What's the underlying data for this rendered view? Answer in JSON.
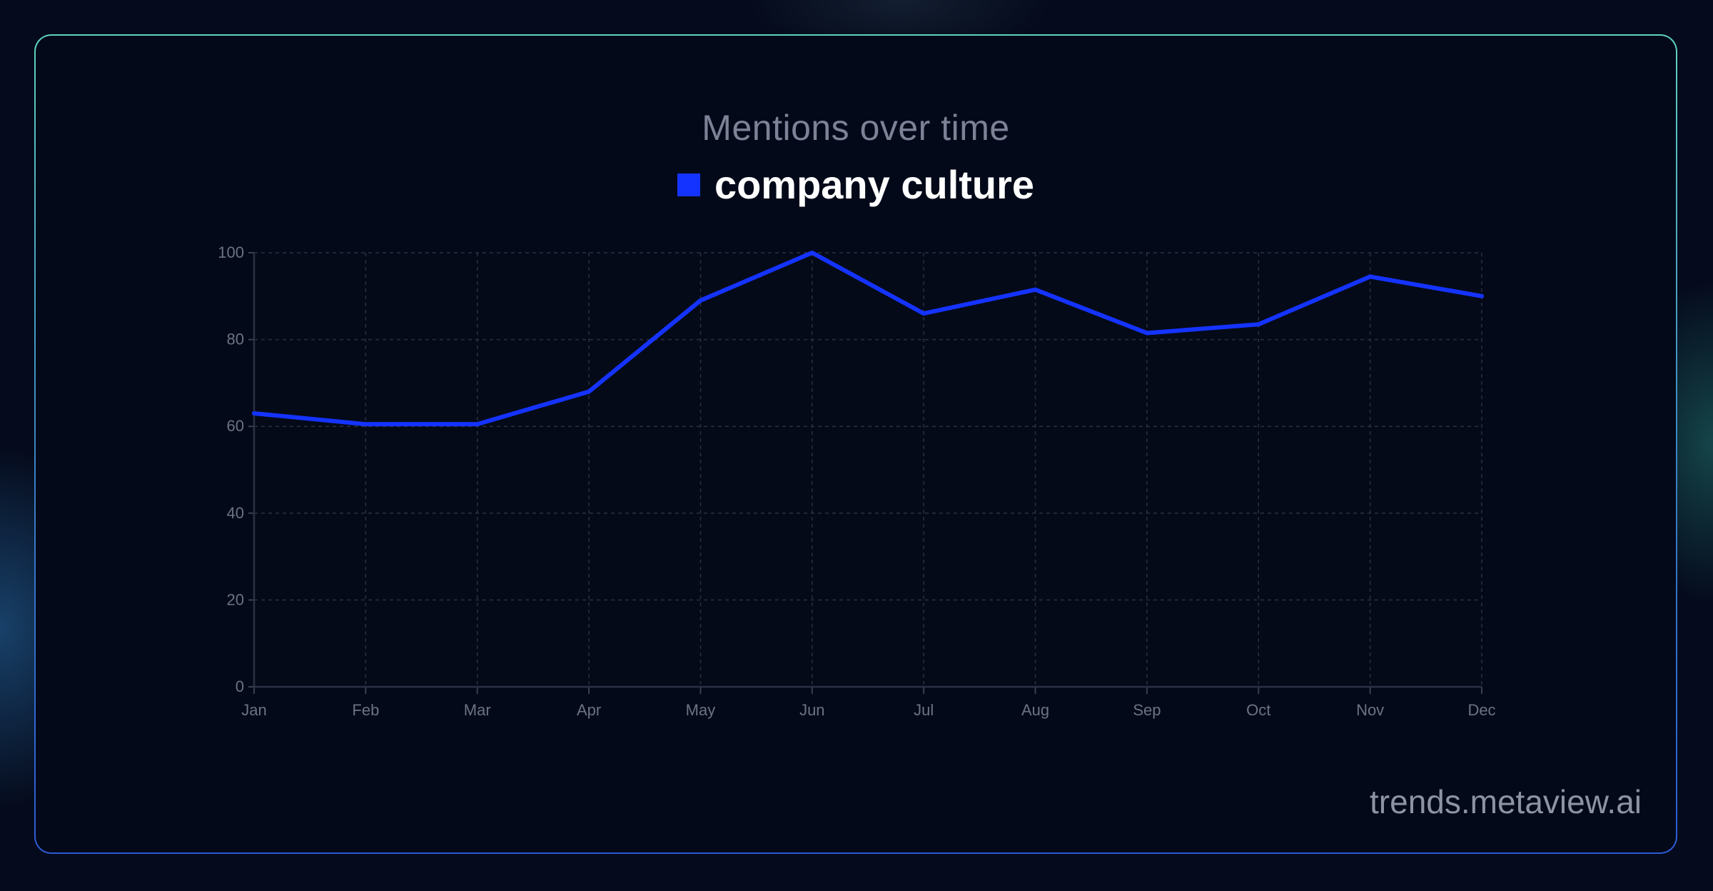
{
  "colors": {
    "background": "#050b1c",
    "card": "#030919",
    "series": "#1533ff",
    "title": "#7d8296",
    "grid": "#2a3041"
  },
  "watermark": "trends.metaview.ai",
  "chart_data": {
    "type": "line",
    "title": "Mentions over time",
    "xlabel": "",
    "ylabel": "",
    "categories": [
      "Jan",
      "Feb",
      "Mar",
      "Apr",
      "May",
      "Jun",
      "Jul",
      "Aug",
      "Sep",
      "Oct",
      "Nov",
      "Dec"
    ],
    "yticks": [
      0,
      20,
      40,
      60,
      80,
      100
    ],
    "ylim": [
      0,
      100
    ],
    "grid": true,
    "legend_position": "top-center",
    "series": [
      {
        "name": "company culture",
        "color": "#1533ff",
        "values": [
          63,
          60.5,
          60.5,
          68,
          89,
          100,
          86,
          91.5,
          81.5,
          83.5,
          94.5,
          90
        ]
      }
    ]
  }
}
